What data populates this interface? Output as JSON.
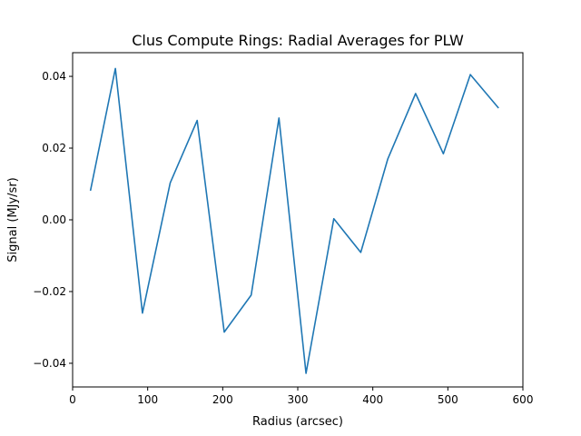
{
  "chart_data": {
    "type": "line",
    "title": "Clus Compute Rings: Radial Averages for PLW",
    "xlabel": "Radius (arcsec)",
    "ylabel": "Signal (MJy/sr)",
    "xlim": [
      0,
      600
    ],
    "ylim": [
      -0.0466,
      0.0466
    ],
    "xticks": [
      0,
      100,
      200,
      300,
      400,
      500,
      600
    ],
    "yticks": [
      -0.04,
      -0.02,
      0.0,
      0.02,
      0.04
    ],
    "xtick_labels": [
      "0",
      "100",
      "200",
      "300",
      "400",
      "500",
      "600"
    ],
    "ytick_labels": [
      "−0.04",
      "−0.02",
      "0.00",
      "0.02",
      "0.04"
    ],
    "grid": false,
    "series": [
      {
        "color": "#1f77b4",
        "x": [
          24,
          57,
          93,
          130,
          166,
          202,
          238,
          275,
          311,
          348,
          384,
          420,
          457,
          494,
          530,
          567
        ],
        "y": [
          0.0083,
          0.0422,
          -0.026,
          0.0103,
          0.0277,
          -0.0313,
          -0.021,
          0.0284,
          -0.0428,
          0.0003,
          -0.0091,
          0.017,
          0.0352,
          0.0184,
          0.0405,
          0.0313
        ]
      }
    ]
  }
}
